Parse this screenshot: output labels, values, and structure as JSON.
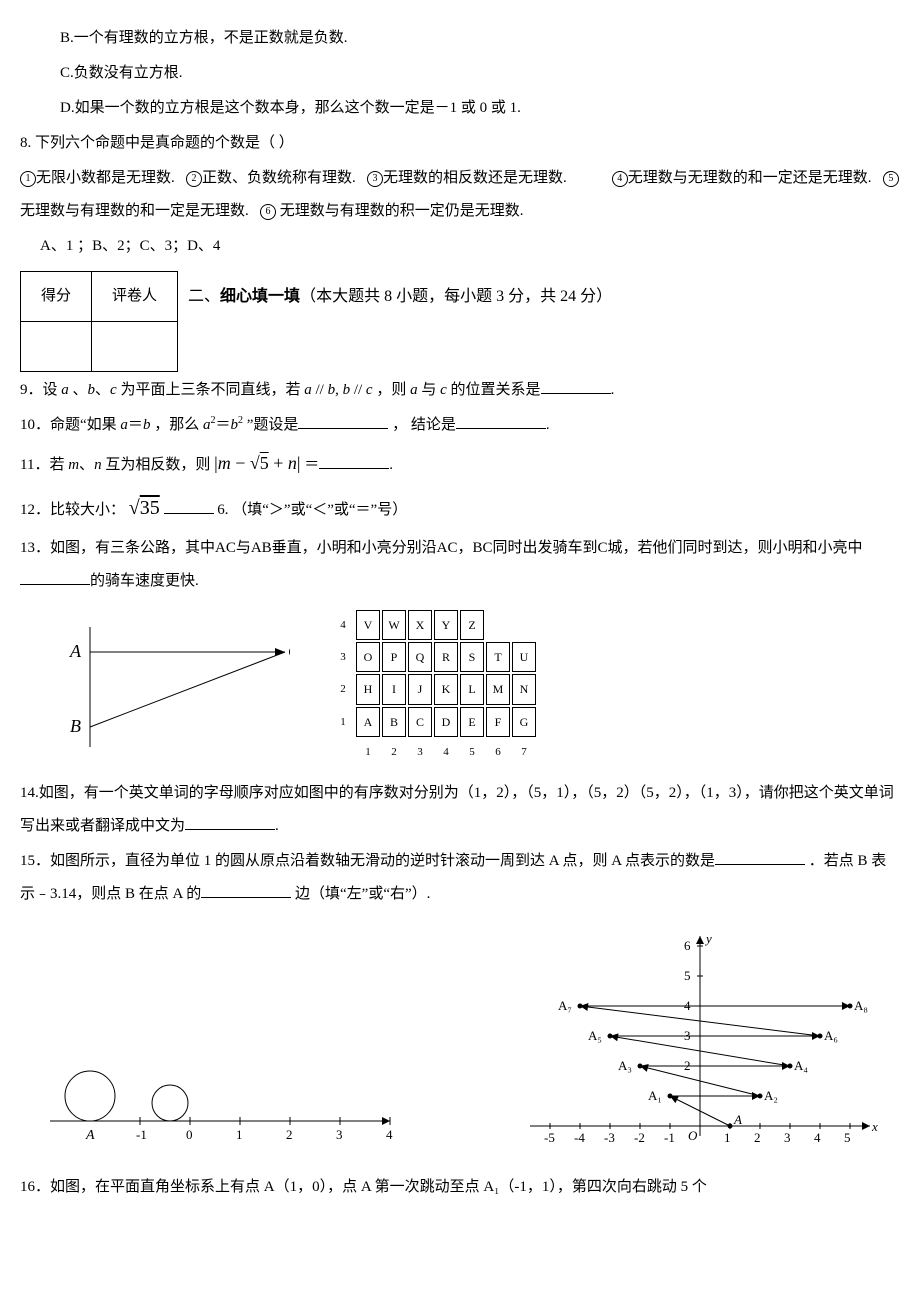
{
  "q7": {
    "B": "B.一个有理数的立方根，不是正数就是负数.",
    "C": "C.负数没有立方根.",
    "D": "D.如果一个数的立方根是这个数本身，那么这个数一定是－1 或 0 或 1."
  },
  "q8": {
    "stem": "8.  下列六个命题中是真命题的个数是（     ）",
    "p1": "无限小数都是无理数.",
    "p2": "正数、负数统称有理数.",
    "p3": "无理数的相反数还是无理数.",
    "p4": "无理数与无理数的和一定还是无理数.",
    "p5": "无理数与有理数的和一定是无理数.",
    "p6": " 无理数与有理数的积一定仍是无理数.",
    "opts": "A、1  ；B、2；C、3；D、4"
  },
  "score": {
    "c1": "得分",
    "c2": "评卷人"
  },
  "sec2": {
    "title_a": "二、",
    "title_b": "细心填一填",
    "title_c": "（本大题共 8 小题，每小题 3 分，共 24 分）"
  },
  "q9": {
    "a": "9．设 ",
    "b": " 为平面上三条不同直线，若 ",
    "c": "，则 ",
    "d": " 与 ",
    "e": " 的位置关系是",
    "f": "."
  },
  "q10": {
    "a": "10．命题“如果 ",
    "b": "＝",
    "c": "，那么 ",
    "d": "＝",
    "e": "”题设是",
    "f": "，  结论是",
    "g": "."
  },
  "q11": {
    "a": "11．若 ",
    "b": " 互为相反数，则 ",
    "c": " ＝",
    "d": "."
  },
  "q12": {
    "a": "12．比较大小：",
    "b": " ",
    "c": "6.  （填“＞”或“＜”或“＝”号）"
  },
  "q13": "13．如图，有三条公路，其中AC与AB垂直，小明和小亮分别沿AC，BC同时出发骑车到C城，若他们同时到达，则小明和小亮中",
  "q13b": "的骑车速度更快.",
  "grid": {
    "rows": [
      {
        "y": "4",
        "cells": [
          "V",
          "W",
          "X",
          "Y",
          "Z",
          "",
          ""
        ]
      },
      {
        "y": "3",
        "cells": [
          "O",
          "P",
          "Q",
          "R",
          "S",
          "T",
          "U"
        ]
      },
      {
        "y": "2",
        "cells": [
          "H",
          "I",
          "J",
          "K",
          "L",
          "M",
          "N"
        ]
      },
      {
        "y": "1",
        "cells": [
          "A",
          "B",
          "C",
          "D",
          "E",
          "F",
          "G"
        ]
      }
    ],
    "xaxis": [
      "1",
      "2",
      "3",
      "4",
      "5",
      "6",
      "7"
    ]
  },
  "q14": {
    "a": "14.如图，有一个英文单词的字母顺序对应如图中的有序数对分别为（1，2），（5，1），（5，2）（5，2），（1，3），请你把这个英文单词写出来或者翻译成中文为",
    "b": "."
  },
  "q15": {
    "a": "15．如图所示，直径为单位 1 的圆从原点沿着数轴无滑动的逆时针滚动一周到达 A 点，则 A 点表示的数是",
    "b": "．若点 B 表示﹣3.14，则点 B 在点 A 的",
    "c": "边（填“左”或“右”）."
  },
  "q16": "16．如图，在平面直角坐标系上有点 A（1，0），点 A 第一次跳动至点 A₁（-1，1），第四次向右跳动 5 个",
  "numline": {
    "ticks": [
      "-1",
      "0",
      "1",
      "2",
      "3",
      "4"
    ],
    "A_label": "A"
  },
  "coord": {
    "xticks": [
      "-5",
      "-4",
      "-3",
      "-2",
      "-1",
      "1",
      "2",
      "3",
      "4",
      "5"
    ],
    "yticks": [
      "2",
      "3",
      "4",
      "5",
      "6"
    ],
    "xlab": "x",
    "ylab": "y",
    "origin": "O",
    "pts": {
      "A": "A",
      "A1": "A₁",
      "A2": "A₂",
      "A3": "A₃",
      "A4": "A₄",
      "A5": "A₅",
      "A6": "A₆",
      "A7": "A₇",
      "A8": "A₈"
    },
    "colors": {
      "axis": "#000",
      "arrow": "#000"
    }
  },
  "tri": {
    "A": "A",
    "B": "B",
    "C": "C"
  }
}
